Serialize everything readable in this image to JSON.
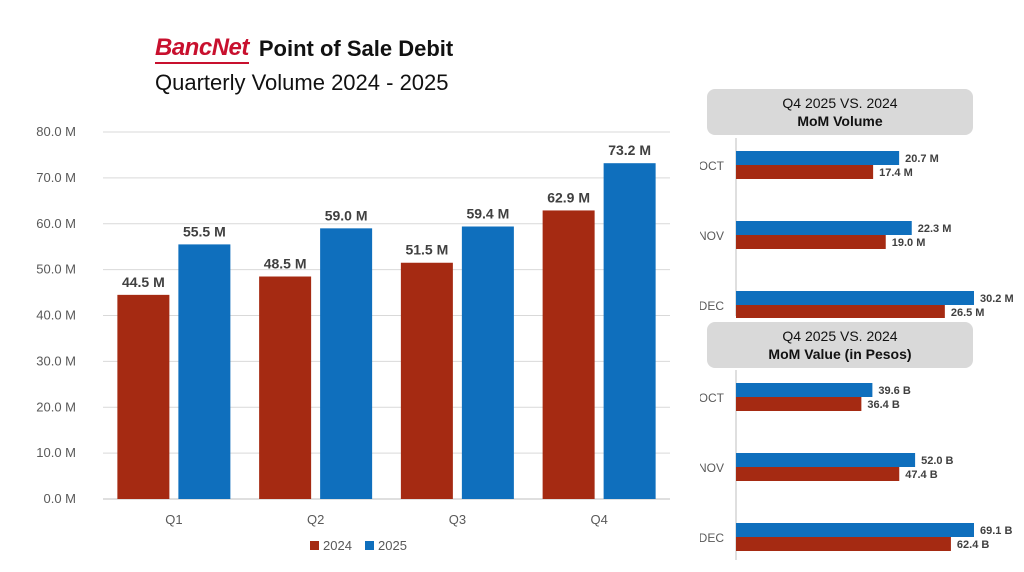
{
  "header": {
    "logo_text": "BancNet",
    "title": "Point of Sale Debit",
    "subtitle": "Quarterly Volume 2024 - 2025"
  },
  "colors": {
    "s2024": "#a52a12",
    "s2025": "#0f6fbd",
    "axis": "#595959",
    "grid": "#d9d9d9"
  },
  "chart_data": [
    {
      "type": "bar",
      "title": "Quarterly Volume 2024 - 2025",
      "categories": [
        "Q1",
        "Q2",
        "Q3",
        "Q4"
      ],
      "series": [
        {
          "name": "2024",
          "values": [
            44.5,
            48.5,
            51.5,
            62.9
          ],
          "labels": [
            "44.5 M",
            "48.5 M",
            "51.5 M",
            "62.9 M"
          ]
        },
        {
          "name": "2025",
          "values": [
            55.5,
            59.0,
            59.4,
            73.2
          ],
          "labels": [
            "55.5 M",
            "59.0 M",
            "59.4 M",
            "73.2 M"
          ]
        }
      ],
      "ylim": [
        0,
        80
      ],
      "yticks": [
        "0.0 M",
        "10.0 M",
        "20.0 M",
        "30.0 M",
        "40.0 M",
        "50.0 M",
        "60.0 M",
        "70.0 M",
        "80.0 M"
      ],
      "legend": "bottom-center"
    },
    {
      "type": "bar",
      "orientation": "horizontal",
      "title_line1": "Q4 2025 VS. 2024",
      "title_line2": "MoM Volume",
      "categories": [
        "OCT",
        "NOV",
        "DEC"
      ],
      "xlim": [
        0,
        30.2
      ],
      "series": [
        {
          "name": "2025",
          "values": [
            20.7,
            22.3,
            30.2
          ],
          "labels": [
            "20.7 M",
            "22.3 M",
            "30.2 M"
          ]
        },
        {
          "name": "2024",
          "values": [
            17.4,
            19.0,
            26.5
          ],
          "labels": [
            "17.4 M",
            "19.0 M",
            "26.5 M"
          ]
        }
      ]
    },
    {
      "type": "bar",
      "orientation": "horizontal",
      "title_line1": "Q4 2025 VS. 2024",
      "title_line2": "MoM Value (in Pesos)",
      "categories": [
        "OCT",
        "NOV",
        "DEC"
      ],
      "xlim": [
        0,
        69.1
      ],
      "series": [
        {
          "name": "2025",
          "values": [
            39.6,
            52.0,
            69.1
          ],
          "labels": [
            "39.6 B",
            "52.0 B",
            "69.1 B"
          ]
        },
        {
          "name": "2024",
          "values": [
            36.4,
            47.4,
            62.4
          ],
          "labels": [
            "36.4 B",
            "47.4 B",
            "62.4 B"
          ]
        }
      ]
    }
  ]
}
